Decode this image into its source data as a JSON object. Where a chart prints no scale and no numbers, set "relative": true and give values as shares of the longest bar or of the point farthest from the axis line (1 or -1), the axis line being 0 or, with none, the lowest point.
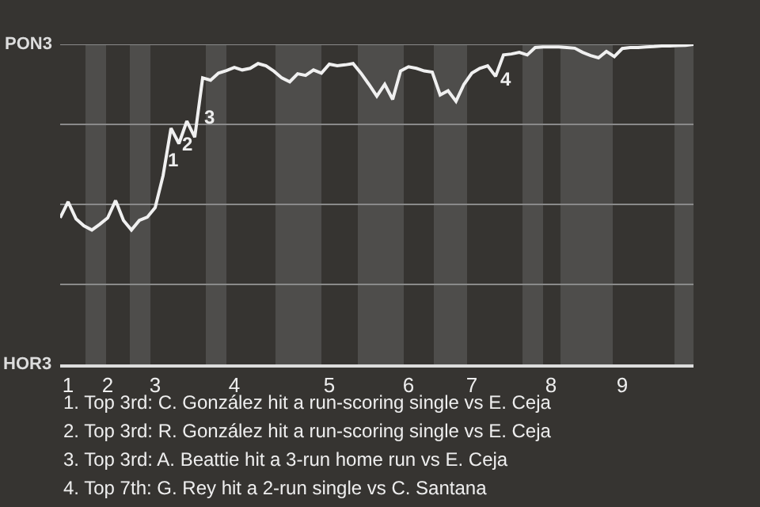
{
  "chart_data": {
    "type": "line",
    "relative": true,
    "categories": [
      null,
      "1",
      null,
      null,
      null,
      null,
      "2",
      null,
      null,
      null,
      null,
      null,
      "3",
      null,
      null,
      null,
      null,
      null,
      null,
      null,
      null,
      null,
      "4",
      null,
      null,
      null,
      null,
      null,
      null,
      null,
      null,
      null,
      null,
      null,
      "5",
      null,
      null,
      null,
      null,
      null,
      null,
      null,
      null,
      null,
      "6",
      null,
      null,
      null,
      null,
      null,
      null,
      null,
      "7",
      null,
      null,
      null,
      null,
      null,
      null,
      null,
      null,
      null,
      "8",
      null,
      null,
      null,
      null,
      null,
      null,
      null,
      null,
      "9",
      null,
      null,
      null,
      null,
      null,
      null,
      null,
      null,
      null
    ],
    "series": [
      {
        "color": "#f0f0f0",
        "values": [
          0.458,
          0.508,
          0.455,
          0.433,
          0.42,
          0.438,
          0.458,
          0.512,
          0.45,
          0.42,
          0.45,
          0.46,
          0.49,
          0.59,
          0.738,
          0.69,
          0.76,
          0.71,
          0.895,
          0.888,
          0.91,
          0.918,
          0.928,
          0.92,
          0.925,
          0.94,
          0.933,
          0.916,
          0.895,
          0.883,
          0.908,
          0.903,
          0.92,
          0.91,
          0.938,
          0.933,
          0.936,
          0.94,
          0.91,
          0.875,
          0.838,
          0.875,
          0.828,
          0.917,
          0.93,
          0.925,
          0.917,
          0.913,
          0.842,
          0.855,
          0.822,
          0.875,
          0.91,
          0.925,
          0.933,
          0.9,
          0.967,
          0.97,
          0.975,
          0.967,
          0.99,
          0.992,
          0.992,
          0.992,
          0.99,
          0.988,
          0.975,
          0.965,
          0.958,
          0.978,
          0.962,
          0.987,
          0.99,
          0.99,
          0.992,
          0.993,
          0.995,
          0.995,
          0.996,
          0.997,
          1
        ]
      }
    ],
    "ref_lines": [
      {
        "axis": "y",
        "value": 0.25,
        "color": "#8a8a8a"
      },
      {
        "axis": "y",
        "value": 0.5,
        "color": "#8a8a8a"
      },
      {
        "axis": "y",
        "value": 0.75,
        "color": "#8a8a8a"
      },
      {
        "axis": "y",
        "value": 1,
        "color": "#8a8a8a"
      }
    ],
    "marker": "none",
    "line_style": "solid",
    "annotations": [
      "PON3",
      "HOR3",
      "1",
      "2",
      "3",
      "4",
      "1. Top 3rd: C. González hit a run-scoring single vs E. Ceja",
      "2. Top 3rd: R. González hit a run-scoring single vs E. Ceja",
      "3. Top 3rd: A. Beattie hit a 3-run home run vs E. Ceja",
      "4. Top 7th: G. Rey hit a 2-run single vs C. Santana"
    ]
  }
}
